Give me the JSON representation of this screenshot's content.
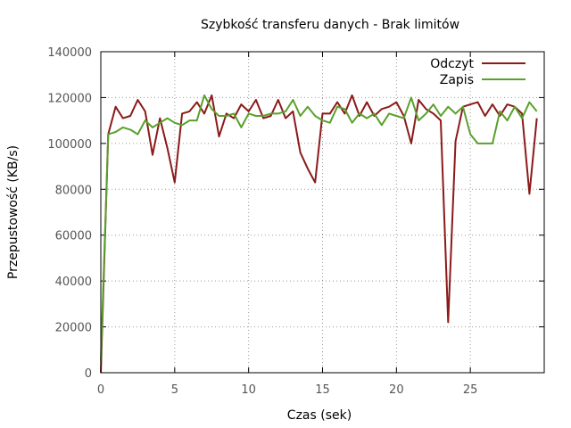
{
  "chart_data": {
    "type": "line",
    "title": "Szybkość transferu danych - Brak limitów",
    "xlabel": "Czas (sek)",
    "ylabel": "Przepustowość (KB/s)",
    "xlim": [
      0,
      30
    ],
    "ylim": [
      0,
      140000
    ],
    "xticks": [
      0,
      5,
      10,
      15,
      20,
      25
    ],
    "yticks": [
      0,
      20000,
      40000,
      60000,
      80000,
      100000,
      120000,
      140000
    ],
    "ytick_labels": [
      "0",
      "20000",
      "40000",
      "60000",
      "80000",
      "100000",
      "120000",
      "140000"
    ],
    "grid": true,
    "legend_position": "top-right",
    "series": [
      {
        "name": "Odczyt",
        "color": "#8b1a1a",
        "points": [
          [
            0,
            0
          ],
          [
            0.5,
            104000
          ],
          [
            1.0,
            116000
          ],
          [
            1.5,
            111000
          ],
          [
            2.0,
            112000
          ],
          [
            2.5,
            119000
          ],
          [
            3.0,
            114000
          ],
          [
            3.5,
            95000
          ],
          [
            4.0,
            111000
          ],
          [
            4.5,
            98000
          ],
          [
            5.0,
            83000
          ],
          [
            5.5,
            113000
          ],
          [
            6.0,
            114000
          ],
          [
            6.5,
            118000
          ],
          [
            7.0,
            113000
          ],
          [
            7.5,
            121000
          ],
          [
            8.0,
            103000
          ],
          [
            8.5,
            113000
          ],
          [
            9.0,
            111000
          ],
          [
            9.5,
            117000
          ],
          [
            10.0,
            114000
          ],
          [
            10.5,
            119000
          ],
          [
            11.0,
            111000
          ],
          [
            11.5,
            112000
          ],
          [
            12.0,
            119000
          ],
          [
            12.5,
            111000
          ],
          [
            13.0,
            114000
          ],
          [
            13.5,
            96000
          ],
          [
            14.0,
            89000
          ],
          [
            14.5,
            83000
          ],
          [
            15.0,
            113000
          ],
          [
            15.5,
            113000
          ],
          [
            16.0,
            118000
          ],
          [
            16.5,
            113000
          ],
          [
            17.0,
            121000
          ],
          [
            17.5,
            112000
          ],
          [
            18.0,
            118000
          ],
          [
            18.5,
            112000
          ],
          [
            19.0,
            115000
          ],
          [
            19.5,
            116000
          ],
          [
            20.0,
            118000
          ],
          [
            20.5,
            112000
          ],
          [
            21.0,
            100000
          ],
          [
            21.5,
            119000
          ],
          [
            22.0,
            115000
          ],
          [
            22.5,
            113000
          ],
          [
            23.0,
            110000
          ],
          [
            23.5,
            22000
          ],
          [
            24.0,
            101000
          ],
          [
            24.5,
            116000
          ],
          [
            25.0,
            117000
          ],
          [
            25.5,
            118000
          ],
          [
            26.0,
            112000
          ],
          [
            26.5,
            117000
          ],
          [
            27.0,
            112000
          ],
          [
            27.5,
            117000
          ],
          [
            28.0,
            116000
          ],
          [
            28.5,
            113000
          ],
          [
            29.0,
            78000
          ],
          [
            29.5,
            111000
          ]
        ]
      },
      {
        "name": "Zapis",
        "color": "#5aa02c",
        "points": [
          [
            0,
            5000
          ],
          [
            0.5,
            104000
          ],
          [
            1.0,
            105000
          ],
          [
            1.5,
            107000
          ],
          [
            2.0,
            106000
          ],
          [
            2.5,
            104000
          ],
          [
            3.0,
            110000
          ],
          [
            3.5,
            107000
          ],
          [
            4.0,
            109000
          ],
          [
            4.5,
            111000
          ],
          [
            5.0,
            109000
          ],
          [
            5.5,
            108000
          ],
          [
            6.0,
            110000
          ],
          [
            6.5,
            110000
          ],
          [
            7.0,
            121000
          ],
          [
            7.5,
            115000
          ],
          [
            8.0,
            112000
          ],
          [
            8.5,
            112000
          ],
          [
            9.0,
            113000
          ],
          [
            9.5,
            107000
          ],
          [
            10.0,
            113000
          ],
          [
            10.5,
            112000
          ],
          [
            11.0,
            112000
          ],
          [
            11.5,
            113000
          ],
          [
            12.0,
            113000
          ],
          [
            12.5,
            114000
          ],
          [
            13.0,
            119000
          ],
          [
            13.5,
            112000
          ],
          [
            14.0,
            116000
          ],
          [
            14.5,
            112000
          ],
          [
            15.0,
            110000
          ],
          [
            15.5,
            109000
          ],
          [
            16.0,
            116000
          ],
          [
            16.5,
            115000
          ],
          [
            17.0,
            109000
          ],
          [
            17.5,
            113000
          ],
          [
            18.0,
            111000
          ],
          [
            18.5,
            113000
          ],
          [
            19.0,
            108000
          ],
          [
            19.5,
            113000
          ],
          [
            20.0,
            112000
          ],
          [
            20.5,
            111000
          ],
          [
            21.0,
            120000
          ],
          [
            21.5,
            110000
          ],
          [
            22.0,
            113000
          ],
          [
            22.5,
            117000
          ],
          [
            23.0,
            112000
          ],
          [
            23.5,
            116000
          ],
          [
            24.0,
            113000
          ],
          [
            24.5,
            116000
          ],
          [
            25.0,
            104000
          ],
          [
            25.5,
            100000
          ],
          [
            26.0,
            100000
          ],
          [
            26.5,
            100000
          ],
          [
            27.0,
            114000
          ],
          [
            27.5,
            110000
          ],
          [
            28.0,
            116000
          ],
          [
            28.5,
            111000
          ],
          [
            29.0,
            118000
          ],
          [
            29.5,
            114000
          ]
        ]
      }
    ]
  }
}
